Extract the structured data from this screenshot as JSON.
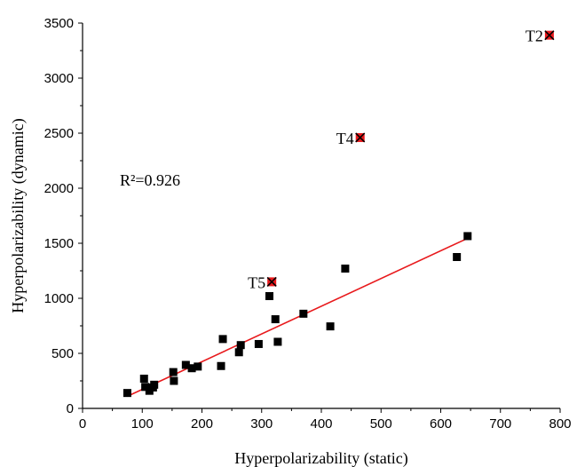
{
  "chart_data": {
    "type": "scatter",
    "xlabel": "Hyperpolarizability (static)",
    "ylabel": "Hyperpolarizability (dynamic)",
    "xlim": [
      0,
      800
    ],
    "ylim": [
      0,
      3500
    ],
    "x_ticks": [
      "0",
      "100",
      "200",
      "300",
      "400",
      "500",
      "600",
      "700",
      "800"
    ],
    "y_ticks": [
      "0",
      "500",
      "1000",
      "1500",
      "2000",
      "2500",
      "3000",
      "3500"
    ],
    "grid": false,
    "points": [
      {
        "x": 75,
        "y": 140
      },
      {
        "x": 103,
        "y": 270
      },
      {
        "x": 105,
        "y": 195
      },
      {
        "x": 112,
        "y": 160
      },
      {
        "x": 118,
        "y": 190
      },
      {
        "x": 120,
        "y": 215
      },
      {
        "x": 152,
        "y": 330
      },
      {
        "x": 153,
        "y": 250
      },
      {
        "x": 173,
        "y": 395
      },
      {
        "x": 183,
        "y": 365
      },
      {
        "x": 193,
        "y": 380
      },
      {
        "x": 232,
        "y": 385
      },
      {
        "x": 235,
        "y": 630
      },
      {
        "x": 262,
        "y": 510
      },
      {
        "x": 265,
        "y": 575
      },
      {
        "x": 295,
        "y": 585
      },
      {
        "x": 313,
        "y": 1020
      },
      {
        "x": 323,
        "y": 810
      },
      {
        "x": 327,
        "y": 605
      },
      {
        "x": 370,
        "y": 860
      },
      {
        "x": 415,
        "y": 745
      },
      {
        "x": 440,
        "y": 1270
      },
      {
        "x": 627,
        "y": 1375
      },
      {
        "x": 645,
        "y": 1565
      }
    ],
    "outliers": [
      {
        "label": "T2",
        "x": 782,
        "y": 3390
      },
      {
        "label": "T4",
        "x": 465,
        "y": 2460
      },
      {
        "label": "T5",
        "x": 317,
        "y": 1150
      }
    ],
    "fit_line": {
      "x": [
        75,
        645
      ],
      "y": [
        110,
        1545
      ]
    },
    "annotation": "R²=0.926",
    "colors": {
      "points": "#000000",
      "fit_line": "#e8191c",
      "outlier_fill": "#e8191c",
      "outlier_mark": "#000000"
    }
  }
}
